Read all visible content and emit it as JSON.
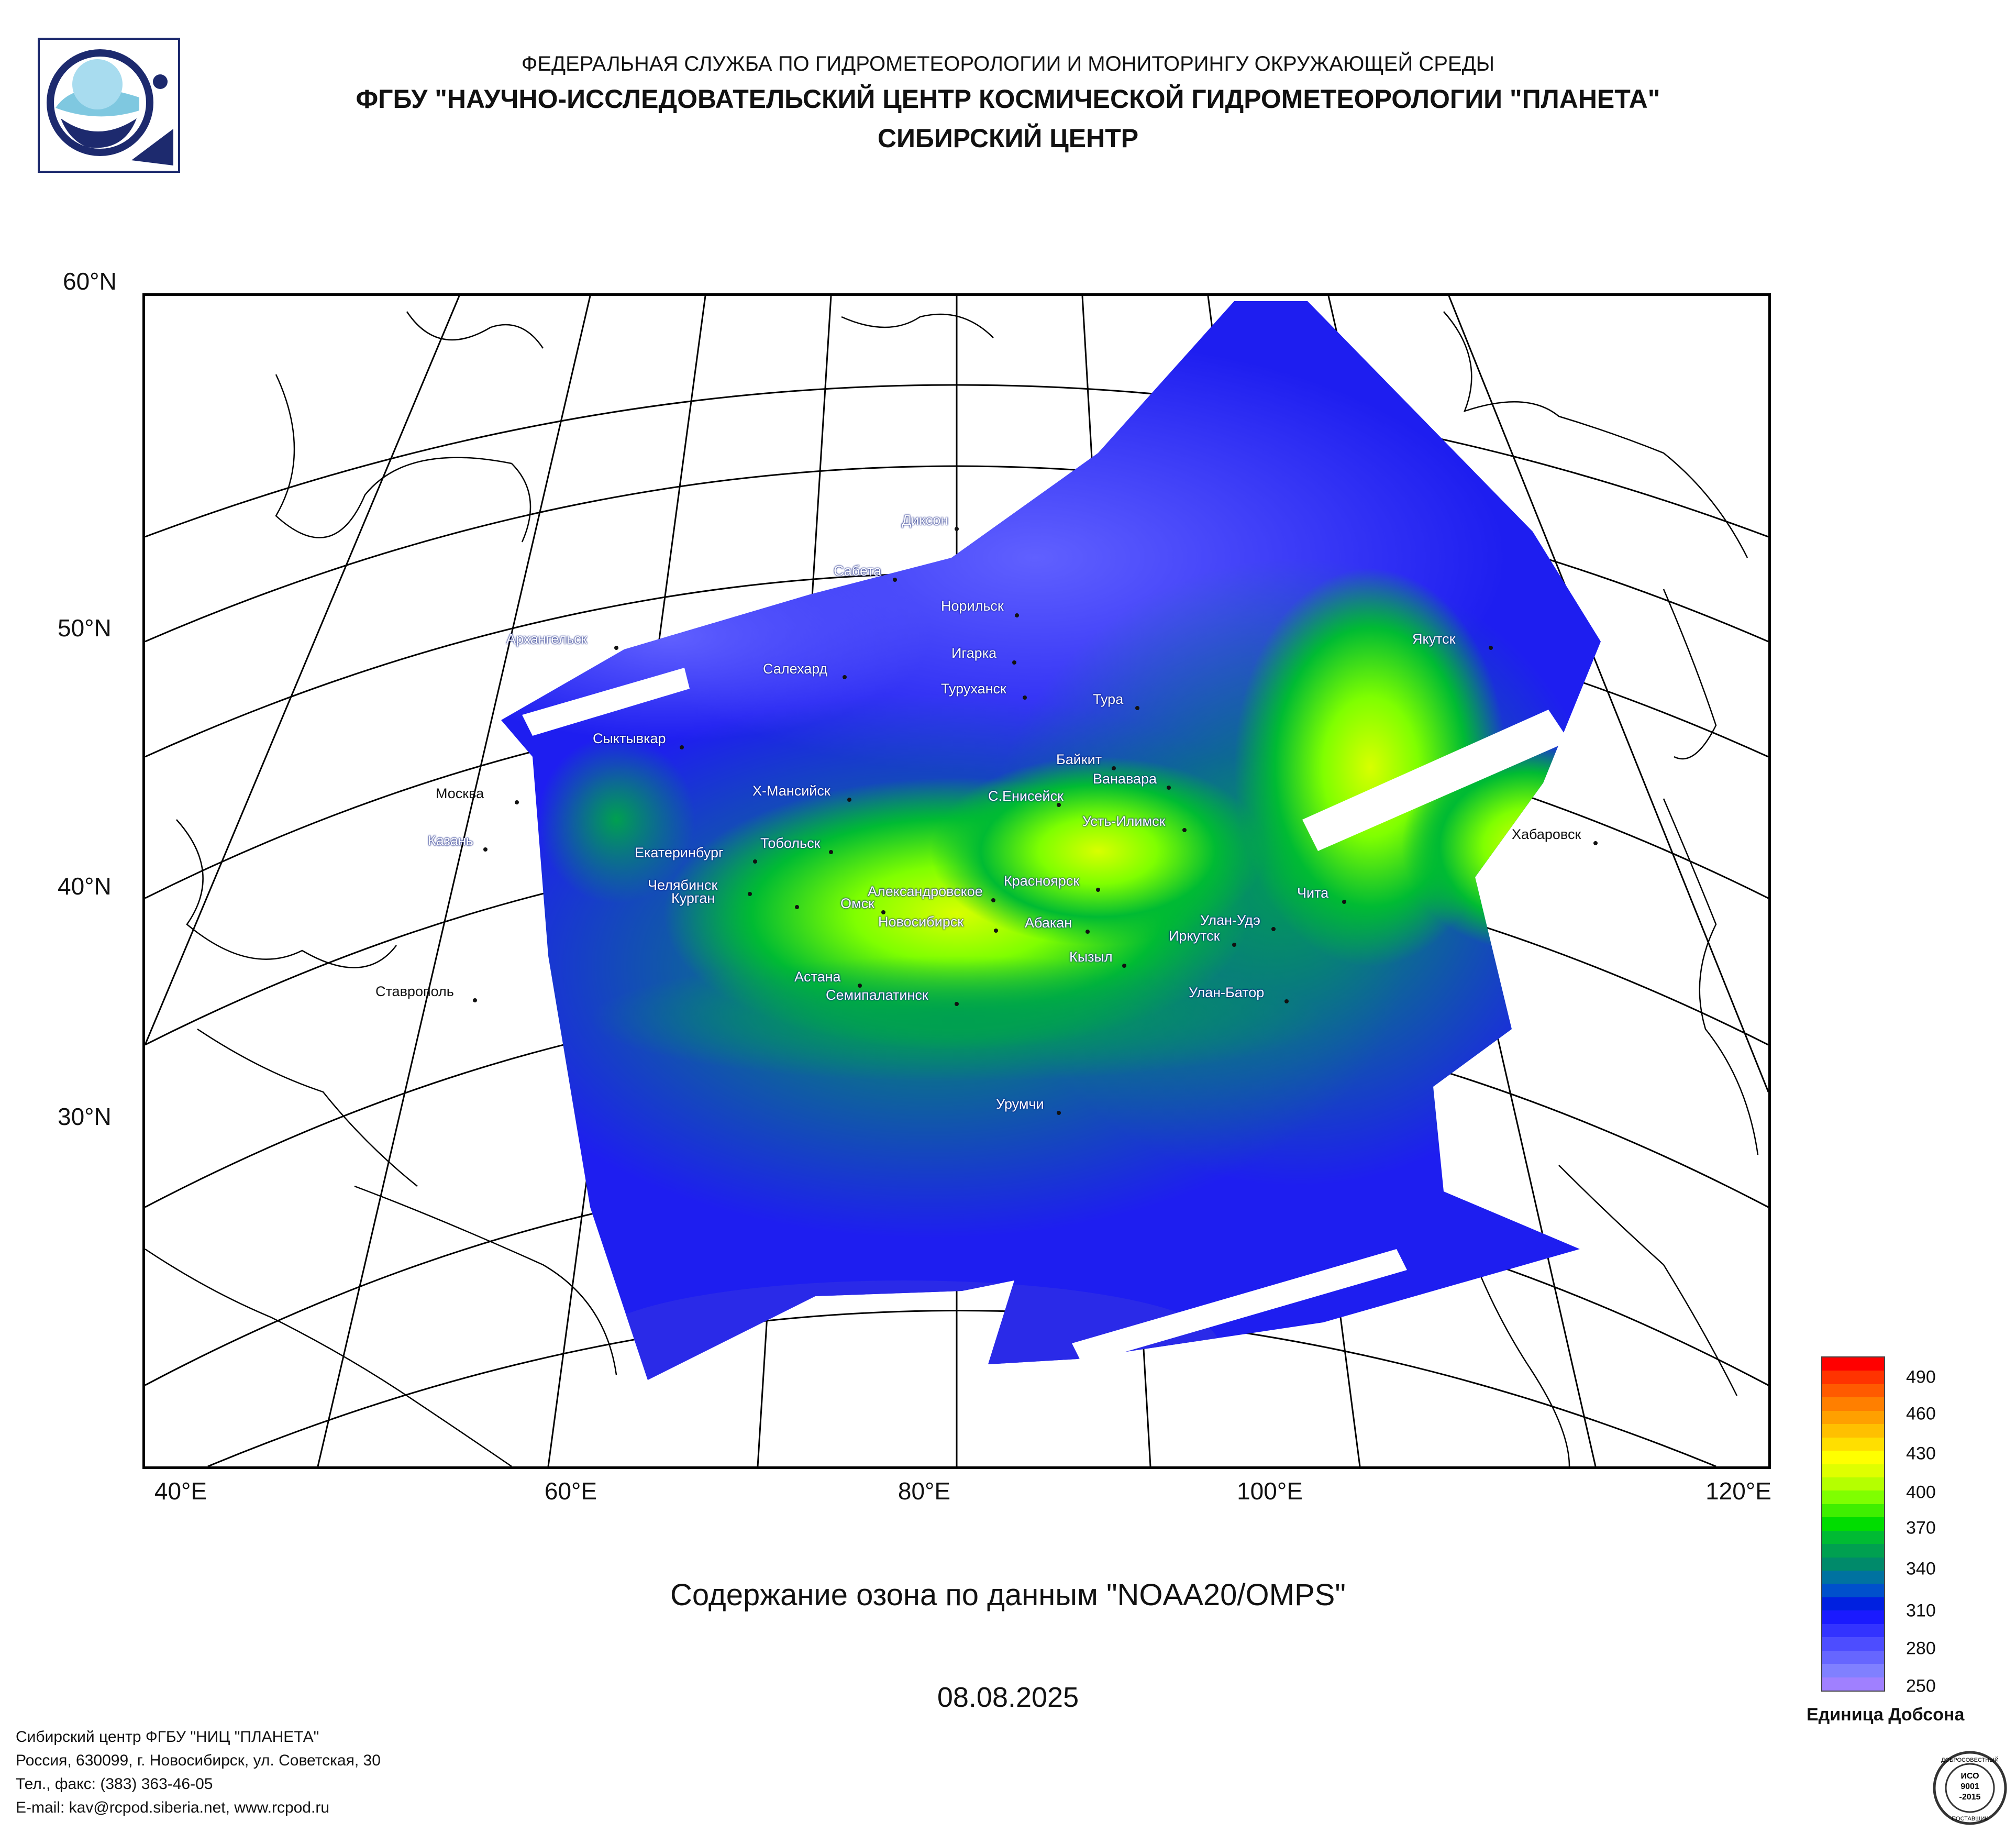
{
  "header": {
    "line1": "ФЕДЕРАЛЬНАЯ СЛУЖБА ПО ГИДРОМЕТЕОРОЛОГИИ И МОНИТОРИНГУ ОКРУЖАЮЩЕЙ СРЕДЫ",
    "line2": "ФГБУ \"НАУЧНО-ИССЛЕДОВАТЕЛЬСКИЙ ЦЕНТР КОСМИЧЕСКОЙ ГИДРОМЕТЕОРОЛОГИИ \"ПЛАНЕТА\"",
    "line3": "СИБИРСКИЙ ЦЕНТР"
  },
  "map": {
    "lat_labels": [
      "60°N",
      "50°N",
      "40°N",
      "30°N"
    ],
    "lon_labels": [
      "40°E",
      "60°E",
      "80°E",
      "100°E",
      "120°E"
    ],
    "cities": [
      {
        "name": "Диксон",
        "on_data": true
      },
      {
        "name": "Сабета",
        "on_data": true
      },
      {
        "name": "Норильск",
        "on_data": true
      },
      {
        "name": "Архангельск",
        "on_data": true
      },
      {
        "name": "Игарка",
        "on_data": true
      },
      {
        "name": "Салехард",
        "on_data": true
      },
      {
        "name": "Туруханск",
        "on_data": true
      },
      {
        "name": "Якутск",
        "on_data": true
      },
      {
        "name": "Тура",
        "on_data": true
      },
      {
        "name": "Сыктывкар",
        "on_data": true
      },
      {
        "name": "Москва",
        "on_data": false
      },
      {
        "name": "Байкит",
        "on_data": true
      },
      {
        "name": "Ванавара",
        "on_data": true
      },
      {
        "name": "Х-Мансийск",
        "on_data": true
      },
      {
        "name": "С.Енисейск",
        "on_data": true
      },
      {
        "name": "Усть-Илимск",
        "on_data": true
      },
      {
        "name": "Хабаровск",
        "on_data": false
      },
      {
        "name": "Казань",
        "on_data": true
      },
      {
        "name": "Тобольск",
        "on_data": true
      },
      {
        "name": "Екатеринбург",
        "on_data": true
      },
      {
        "name": "Красноярск",
        "on_data": true
      },
      {
        "name": "Челябинск",
        "on_data": true
      },
      {
        "name": "Чита",
        "on_data": true
      },
      {
        "name": "Александровское",
        "on_data": true
      },
      {
        "name": "Курган",
        "on_data": true
      },
      {
        "name": "Омск",
        "on_data": true
      },
      {
        "name": "Улан-Удэ",
        "on_data": true
      },
      {
        "name": "Новосибирск",
        "on_data": true
      },
      {
        "name": "Абакан",
        "on_data": true
      },
      {
        "name": "Иркутск",
        "on_data": true
      },
      {
        "name": "Кызыл",
        "on_data": true
      },
      {
        "name": "Астана",
        "on_data": true
      },
      {
        "name": "Ставрополь",
        "on_data": false
      },
      {
        "name": "Улан-Батор",
        "on_data": true
      },
      {
        "name": "Семипалатинск",
        "on_data": true
      },
      {
        "name": "Урумчи",
        "on_data": true
      }
    ]
  },
  "colorbar": {
    "unit": "Единица Добсона",
    "ticks": [
      "490",
      "460",
      "430",
      "400",
      "370",
      "340",
      "310",
      "280",
      "250"
    ],
    "colors_top_to_bottom": [
      "#ff0000",
      "#ff3300",
      "#ff5a00",
      "#ff7f00",
      "#ffa000",
      "#ffc000",
      "#ffdf00",
      "#ffff00",
      "#dfff00",
      "#b5ff00",
      "#7fff00",
      "#3fef00",
      "#00dd00",
      "#00bb33",
      "#00a050",
      "#008a6a",
      "#0072a0",
      "#0050cc",
      "#0020e0",
      "#1a1aff",
      "#3333ff",
      "#4d4dff",
      "#6666ff",
      "#8080ff",
      "#a080ff"
    ]
  },
  "caption": "Содержание озона по данным \"NOAA20/OMPS\"",
  "date": "08.08.2025",
  "footer": {
    "line1": "Сибирский центр ФГБУ \"НИЦ \"ПЛАНЕТА\"",
    "line2": "Россия, 630099, г. Новосибирск, ул. Советская, 30",
    "line3": "Тел., факс: (383) 363-46-05",
    "line4": "E-mail: kav@rcpod.siberia.net, www.rcpod.ru"
  },
  "iso_badge": {
    "top": "ДОБРОСОВЕСТНЫЙ",
    "mid1": "ИСО",
    "mid2": "9001",
    "mid3": "-2015",
    "bottom": "ПОСТАВЩИК"
  }
}
